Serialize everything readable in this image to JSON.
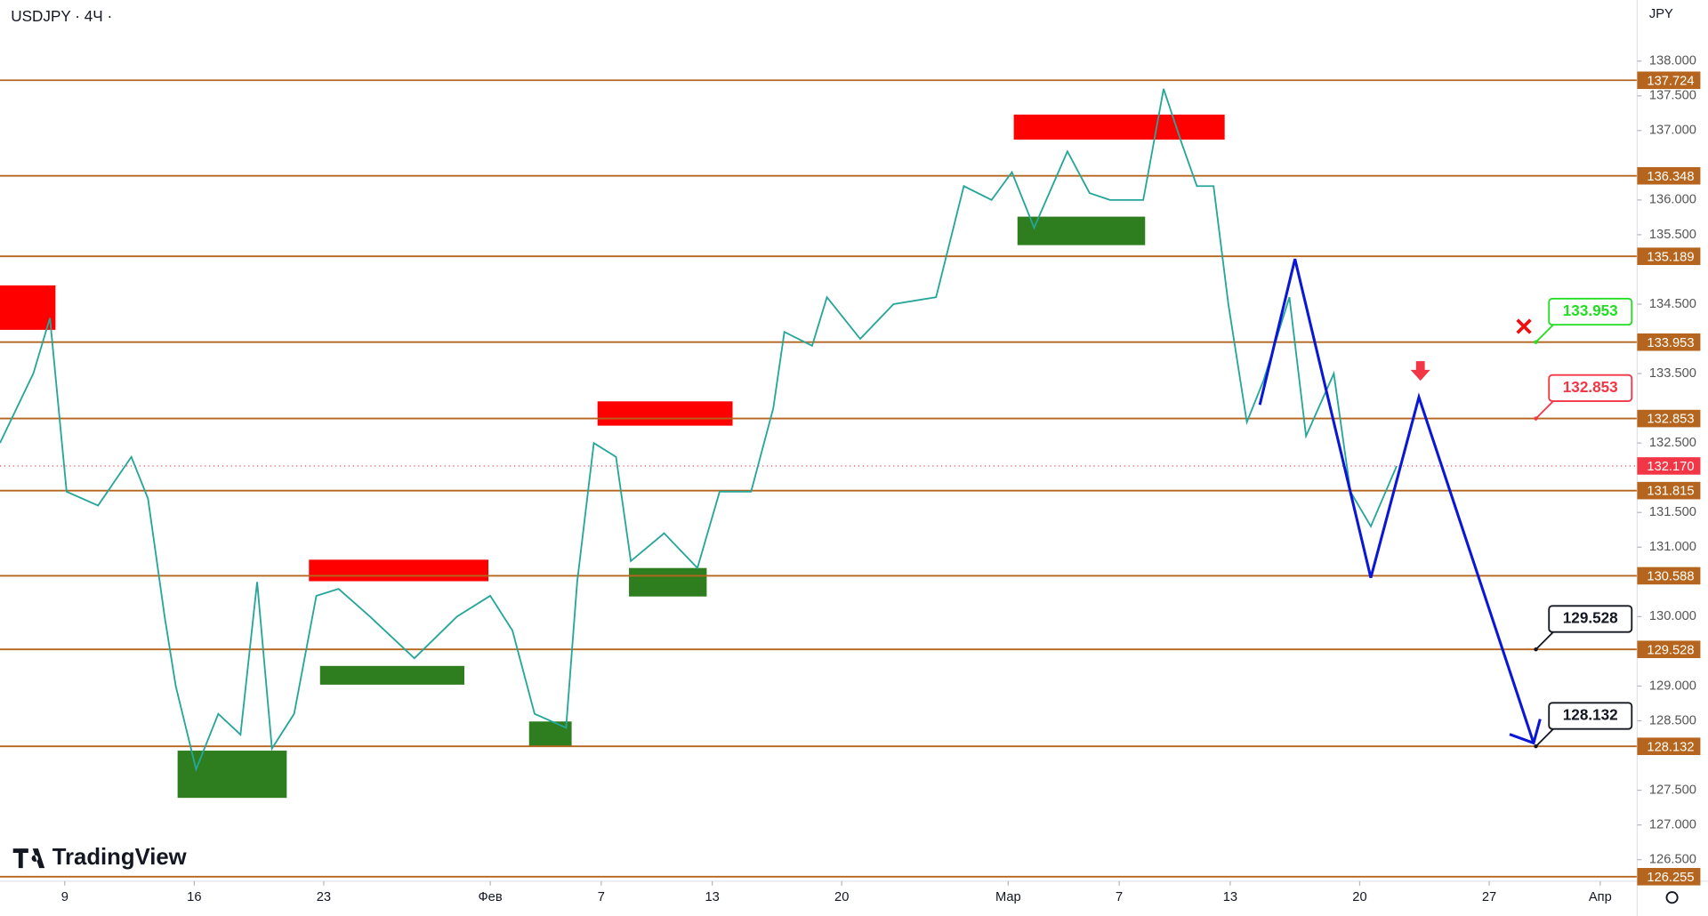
{
  "chart_data": {
    "type": "line",
    "title": "USDJPY · 4Ч ·",
    "currency": "JPY",
    "watermark": "TradingView",
    "x": [
      -3.5,
      -1.7,
      -0.8,
      0.1,
      1.8,
      3.6,
      4.5,
      5.4,
      6.0,
      7.1,
      8.3,
      9.5,
      10.4,
      11.2,
      12.4,
      13.6,
      14.8,
      16.5,
      18.9,
      21.2,
      23.0,
      24.2,
      25.4,
      27.1,
      27.7,
      28.6,
      29.8,
      30.6,
      32.4,
      34.2,
      35.4,
      37.1,
      38.3,
      38.9,
      40.4,
      41.2,
      43.0,
      44.8,
      47.1,
      48.6,
      50.1,
      51.2,
      52.4,
      54.2,
      55.4,
      56.5,
      58.3,
      59.4,
      60.4,
      61.2,
      62.1,
      62.9,
      63.9,
      64.8,
      66.2,
      67.1,
      68.6,
      69.5,
      70.6,
      72.0
    ],
    "series": [
      {
        "color": "#26a69a",
        "values": [
          132.5,
          133.5,
          134.3,
          131.8,
          131.6,
          132.3,
          131.7,
          130.0,
          129.0,
          127.8,
          128.6,
          128.3,
          130.5,
          128.1,
          128.6,
          130.3,
          130.4,
          130.0,
          129.4,
          130.0,
          130.3,
          129.8,
          128.6,
          128.4,
          130.5,
          132.5,
          132.3,
          130.8,
          131.2,
          130.7,
          131.8,
          131.8,
          133.0,
          134.1,
          133.9,
          134.6,
          134.0,
          134.5,
          134.6,
          136.2,
          136.0,
          136.4,
          135.6,
          136.7,
          136.1,
          136.0,
          136.0,
          137.6,
          136.8,
          136.2,
          136.2,
          134.5,
          132.8,
          133.4,
          134.6,
          132.6,
          133.5,
          131.8,
          131.3,
          132.17
        ]
      }
    ],
    "xlim": [
      -3.5,
      85
    ],
    "ylim": [
      126.19,
      138.88
    ],
    "xticks": [
      {
        "value": 0,
        "label": "9"
      },
      {
        "value": 7,
        "label": "16"
      },
      {
        "value": 14,
        "label": "23"
      },
      {
        "value": 23,
        "label": "Фев"
      },
      {
        "value": 29,
        "label": "7"
      },
      {
        "value": 35,
        "label": "13"
      },
      {
        "value": 42,
        "label": "20"
      },
      {
        "value": 51,
        "label": "Мар"
      },
      {
        "value": 57,
        "label": "7"
      },
      {
        "value": 63,
        "label": "13"
      },
      {
        "value": 70,
        "label": "20"
      },
      {
        "value": 77,
        "label": "27"
      },
      {
        "value": 83,
        "label": "Апр"
      }
    ],
    "yticks": [
      {
        "value": 126.5,
        "label": "126.500"
      },
      {
        "value": 127,
        "label": "127.000"
      },
      {
        "value": 127.5,
        "label": "127.500"
      },
      {
        "value": 128.5,
        "label": "128.500"
      },
      {
        "value": 129,
        "label": "129.000"
      },
      {
        "value": 130,
        "label": "130.000"
      },
      {
        "value": 131,
        "label": "131.000"
      },
      {
        "value": 131.5,
        "label": "131.500"
      },
      {
        "value": 132.5,
        "label": "132.500"
      },
      {
        "value": 133.5,
        "label": "133.500"
      },
      {
        "value": 134.5,
        "label": "134.500"
      },
      {
        "value": 135.5,
        "label": "135.500"
      },
      {
        "value": 136,
        "label": "136.000"
      },
      {
        "value": 137,
        "label": "137.000"
      },
      {
        "value": 137.5,
        "label": "137.500"
      },
      {
        "value": 138,
        "label": "138.000"
      }
    ],
    "levels": [
      {
        "value": 137.724,
        "label": "137.724"
      },
      {
        "value": 136.348,
        "label": "136.348"
      },
      {
        "value": 135.189,
        "label": "135.189"
      },
      {
        "value": 133.953,
        "label": "133.953"
      },
      {
        "value": 132.853,
        "label": "132.853"
      },
      {
        "value": 131.815,
        "label": "131.815"
      },
      {
        "value": 130.588,
        "label": "130.588"
      },
      {
        "value": 129.528,
        "label": "129.528"
      },
      {
        "value": 128.132,
        "label": "128.132"
      },
      {
        "value": 126.255,
        "label": "126.255"
      }
    ],
    "level_color": "#b5651d",
    "current_price": {
      "value": 132.17,
      "label": "132.170",
      "color": "#f23645"
    },
    "zones": [
      {
        "x": [
          -3.5,
          -0.5
        ],
        "y": [
          134.13,
          134.77
        ],
        "color": "#ff0000"
      },
      {
        "x": [
          51.3,
          62.7
        ],
        "y": [
          136.87,
          137.23
        ],
        "color": "#ff0000"
      },
      {
        "x": [
          28.8,
          36.1
        ],
        "y": [
          132.75,
          133.1
        ],
        "color": "#ff0000"
      },
      {
        "x": [
          13.2,
          22.9
        ],
        "y": [
          130.51,
          130.82
        ],
        "color": "#ff0000"
      },
      {
        "x": [
          6.1,
          12.0
        ],
        "y": [
          127.39,
          128.07
        ],
        "color": "#2e7d1e"
      },
      {
        "x": [
          13.8,
          21.6
        ],
        "y": [
          129.02,
          129.29
        ],
        "color": "#2e7d1e"
      },
      {
        "x": [
          25.1,
          27.4
        ],
        "y": [
          128.13,
          128.49
        ],
        "color": "#2e7d1e"
      },
      {
        "x": [
          30.5,
          34.7
        ],
        "y": [
          130.29,
          130.7
        ],
        "color": "#2e7d1e"
      },
      {
        "x": [
          51.5,
          58.4
        ],
        "y": [
          135.35,
          135.76
        ],
        "color": "#2e7d1e"
      }
    ],
    "projection": {
      "color": "#0a16d8",
      "x": [
        64.6,
        66.5,
        70.6,
        73.2,
        79.4
      ],
      "values": [
        133.05,
        135.15,
        130.56,
        133.16,
        128.18
      ]
    },
    "callouts": [
      {
        "value": 133.953,
        "label": "133.953",
        "color": "#22dd22"
      },
      {
        "value": 132.853,
        "label": "132.853",
        "color": "#f23645"
      },
      {
        "value": 129.528,
        "label": "129.528",
        "color": "#131722"
      },
      {
        "value": 128.132,
        "label": "128.132",
        "color": "#131722"
      }
    ]
  }
}
